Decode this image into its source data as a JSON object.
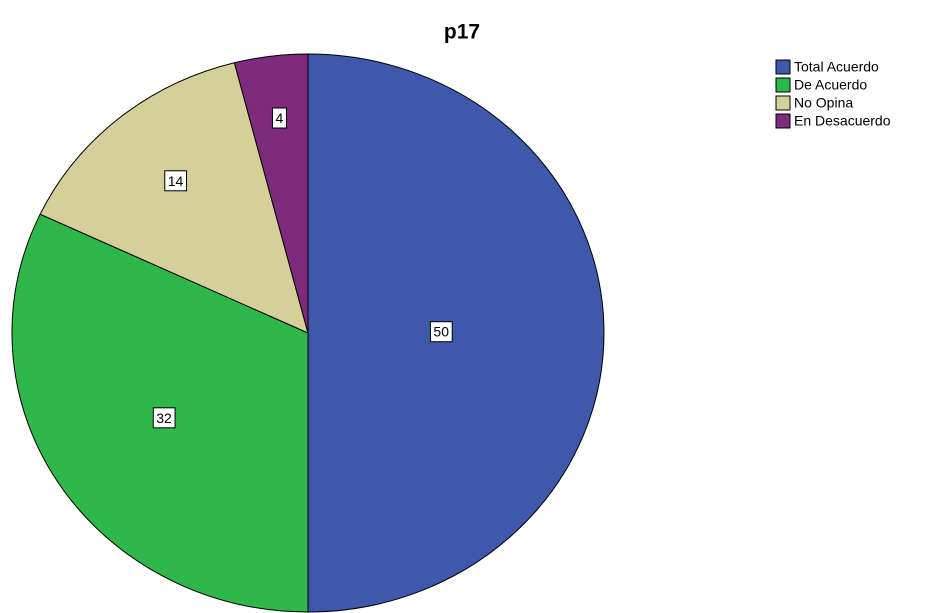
{
  "chart_data": {
    "type": "pie",
    "title": "p17",
    "categories": [
      "Total Acuerdo",
      "De Acuerdo",
      "No Opina",
      "En Desacuerdo"
    ],
    "values": [
      50,
      32,
      14,
      4
    ],
    "colors": [
      "#3e58ac",
      "#2fb84a",
      "#d5cf9a",
      "#7e2a7d"
    ],
    "legend": "right"
  }
}
